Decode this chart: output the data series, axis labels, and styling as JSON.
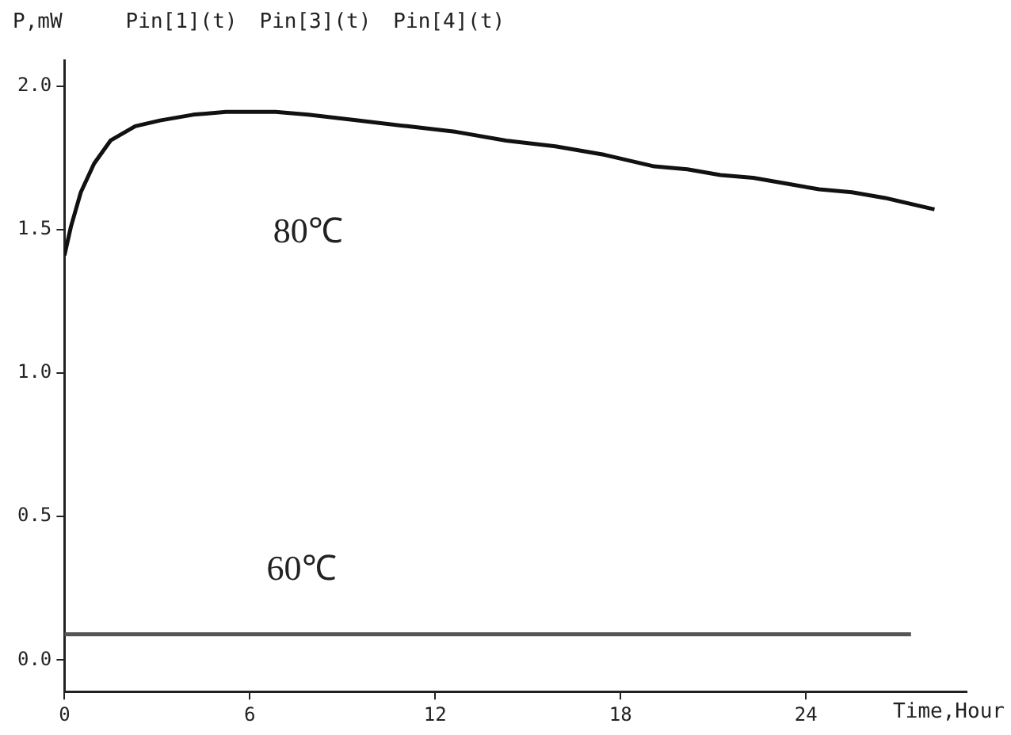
{
  "chart_data": {
    "type": "line",
    "ylabel": "P,mW",
    "xlabel": "Time,Hour",
    "annotations": [
      "Pin[1](t)",
      "Pin[3](t)",
      "Pin[4](t)"
    ],
    "series": [
      {
        "name": "80℃",
        "color": "#111111",
        "x": [
          0,
          0.21,
          0.53,
          0.96,
          1.49,
          2.29,
          3.09,
          4.16,
          5.23,
          6.83,
          7.89,
          9.49,
          11.09,
          12.69,
          14.29,
          15.89,
          17.49,
          19.09,
          20.16,
          21.23,
          22.29,
          23.36,
          24.43,
          25.49,
          26.56,
          28.16
        ],
        "values": [
          1.41,
          1.51,
          1.63,
          1.73,
          1.81,
          1.86,
          1.88,
          1.9,
          1.91,
          1.91,
          1.9,
          1.88,
          1.86,
          1.84,
          1.81,
          1.79,
          1.76,
          1.72,
          1.71,
          1.69,
          1.68,
          1.66,
          1.64,
          1.63,
          1.61,
          1.57
        ]
      },
      {
        "name": "60℃",
        "color": "#555555",
        "x": [
          0,
          4,
          8,
          12,
          16,
          20,
          24,
          27.4
        ],
        "values": [
          0.09,
          0.09,
          0.09,
          0.09,
          0.09,
          0.09,
          0.09,
          0.09
        ]
      }
    ],
    "xlim": [
      0,
      29.2
    ],
    "xticks": [
      0,
      6,
      12,
      18,
      24
    ],
    "ylim": [
      -0.11,
      2.09
    ],
    "yticks": [
      {
        "value": 0,
        "label": "0.0"
      },
      {
        "value": 0.5,
        "label": "0.5"
      },
      {
        "value": 1,
        "label": "1.0"
      },
      {
        "value": 1.5,
        "label": "1.5"
      },
      {
        "value": 2,
        "label": "2.0"
      }
    ],
    "grid": false,
    "legend": false,
    "marker": "none",
    "line_style": "solid"
  }
}
